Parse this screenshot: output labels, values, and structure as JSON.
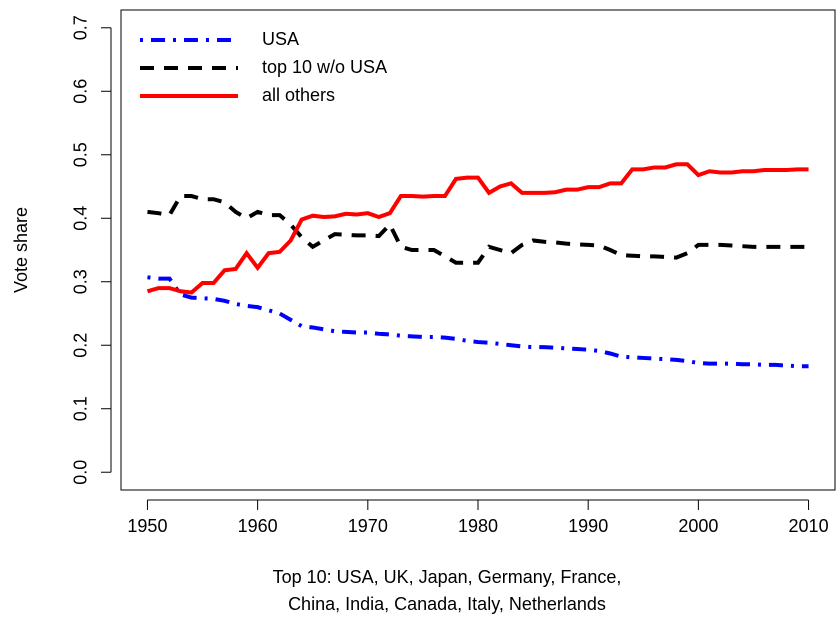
{
  "chart_data": {
    "type": "line",
    "xlabel_lines": [
      "Top 10: USA, UK, Japan, Germany, France,",
      "China, India, Canada, Italy, Netherlands"
    ],
    "ylabel": "Vote share",
    "x": [
      1950,
      1951,
      1952,
      1953,
      1954,
      1955,
      1956,
      1957,
      1958,
      1959,
      1960,
      1961,
      1962,
      1963,
      1964,
      1965,
      1966,
      1967,
      1968,
      1969,
      1970,
      1971,
      1972,
      1973,
      1974,
      1975,
      1976,
      1977,
      1978,
      1979,
      1980,
      1981,
      1982,
      1983,
      1984,
      1985,
      1986,
      1987,
      1988,
      1989,
      1990,
      1991,
      1992,
      1993,
      1994,
      1995,
      1996,
      1997,
      1998,
      1999,
      2000,
      2001,
      2002,
      2003,
      2004,
      2005,
      2006,
      2007,
      2008,
      2009,
      2010
    ],
    "series": [
      {
        "name": "USA",
        "color": "#0000ff",
        "linestyle": "dotdash",
        "values": [
          0.307,
          0.305,
          0.305,
          0.28,
          0.275,
          0.274,
          0.273,
          0.27,
          0.265,
          0.262,
          0.26,
          0.255,
          0.25,
          0.24,
          0.23,
          0.228,
          0.225,
          0.222,
          0.221,
          0.22,
          0.22,
          0.218,
          0.217,
          0.215,
          0.214,
          0.213,
          0.213,
          0.212,
          0.21,
          0.207,
          0.205,
          0.204,
          0.202,
          0.2,
          0.198,
          0.197,
          0.197,
          0.196,
          0.195,
          0.194,
          0.193,
          0.191,
          0.187,
          0.182,
          0.181,
          0.18,
          0.179,
          0.178,
          0.177,
          0.175,
          0.172,
          0.171,
          0.171,
          0.171,
          0.17,
          0.17,
          0.169,
          0.169,
          0.168,
          0.167,
          0.167
        ]
      },
      {
        "name": "top 10 w/o USA",
        "color": "#000000",
        "linestyle": "dashed",
        "values": [
          0.41,
          0.408,
          0.405,
          0.435,
          0.435,
          0.43,
          0.43,
          0.425,
          0.41,
          0.4,
          0.41,
          0.405,
          0.405,
          0.39,
          0.37,
          0.355,
          0.365,
          0.375,
          0.374,
          0.373,
          0.373,
          0.372,
          0.39,
          0.355,
          0.35,
          0.35,
          0.35,
          0.34,
          0.33,
          0.33,
          0.33,
          0.355,
          0.35,
          0.345,
          0.358,
          0.365,
          0.363,
          0.362,
          0.36,
          0.359,
          0.358,
          0.357,
          0.35,
          0.342,
          0.341,
          0.34,
          0.34,
          0.339,
          0.338,
          0.345,
          0.358,
          0.358,
          0.358,
          0.357,
          0.356,
          0.355,
          0.355,
          0.355,
          0.355,
          0.355,
          0.355
        ]
      },
      {
        "name": "all others",
        "color": "#ff0000",
        "linestyle": "solid",
        "values": [
          0.285,
          0.29,
          0.29,
          0.285,
          0.283,
          0.298,
          0.298,
          0.318,
          0.32,
          0.345,
          0.322,
          0.345,
          0.347,
          0.365,
          0.398,
          0.404,
          0.402,
          0.403,
          0.407,
          0.406,
          0.408,
          0.402,
          0.408,
          0.435,
          0.435,
          0.434,
          0.435,
          0.435,
          0.462,
          0.464,
          0.464,
          0.44,
          0.45,
          0.455,
          0.44,
          0.44,
          0.44,
          0.441,
          0.445,
          0.445,
          0.449,
          0.449,
          0.455,
          0.455,
          0.477,
          0.477,
          0.48,
          0.48,
          0.485,
          0.485,
          0.468,
          0.474,
          0.472,
          0.472,
          0.474,
          0.474,
          0.476,
          0.476,
          0.476,
          0.477,
          0.477
        ]
      }
    ],
    "xlim": [
      1947.6,
      2012.4
    ],
    "xticks": [
      1950,
      1960,
      1970,
      1980,
      1990,
      2000,
      2010
    ],
    "ylim": [
      -0.028,
      0.728
    ],
    "yticks": [
      {
        "value": 0,
        "label": "0.0"
      },
      0.1,
      0.2,
      0.3,
      0.4,
      0.5,
      0.6,
      0.7
    ],
    "grid": false,
    "legend": "top-left"
  }
}
